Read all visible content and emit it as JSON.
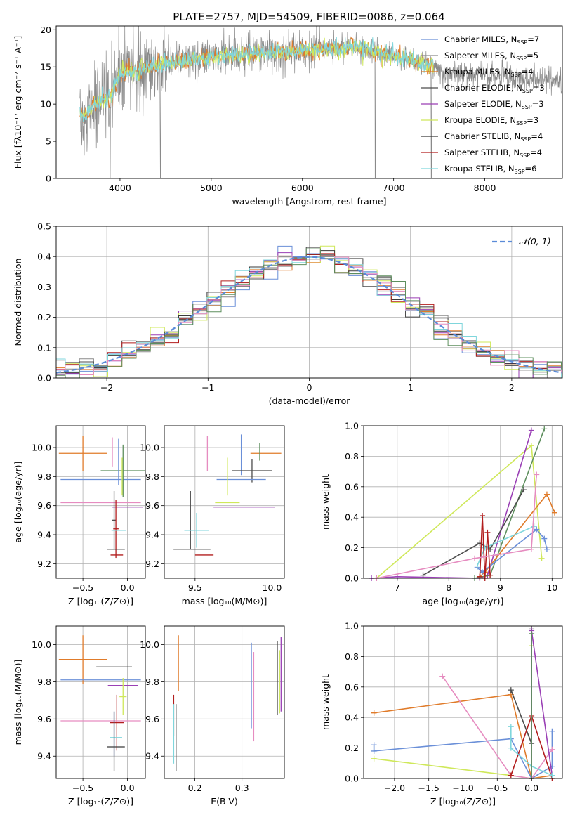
{
  "figure": {
    "title": "PLATE=2757, MJD=54509, FIBERID=0086, z=0.064"
  },
  "palette": [
    "#6a8fd8",
    "#8a8a8a",
    "#e07b2a",
    "#4c4c4c",
    "#9a3fb5",
    "#cfe85a",
    "#3a3a3a",
    "#b21e1e",
    "#7fd6dc",
    "#e68cc0",
    "#5e8f5e"
  ],
  "chart_data": [
    {
      "id": "spectrum",
      "type": "line",
      "xlabel": "wavelength [Angstrom, rest frame]",
      "ylabel": "Flux [fλ10⁻¹⁷ erg cm⁻² s⁻¹ A⁻¹]",
      "xlim": [
        3300,
        8850
      ],
      "ylim": [
        0,
        20.5
      ],
      "xticks": [
        4000,
        5000,
        6000,
        7000,
        8000
      ],
      "yticks": [
        0,
        5,
        10,
        15,
        20
      ],
      "spectrum_x_range": [
        3560,
        8840
      ],
      "grid": false,
      "legend_position": "top-right",
      "legend": [
        {
          "label": "Chabrier MILES, N",
          "sub": "SSP",
          "suffix": "=7",
          "color": "#6a8fd8"
        },
        {
          "label": "Salpeter MILES, N",
          "sub": "SSP",
          "suffix": "=5",
          "color": "#8a8a8a"
        },
        {
          "label": "Kroupa MILES, N",
          "sub": "SSP",
          "suffix": "=4",
          "color": "#e07b2a"
        },
        {
          "label": "Chabrier ELODIE, N",
          "sub": "SSP",
          "suffix": "=3",
          "color": "#4c4c4c"
        },
        {
          "label": "Salpeter ELODIE, N",
          "sub": "SSP",
          "suffix": "=3",
          "color": "#9a3fb5"
        },
        {
          "label": "Kroupa ELODIE, N",
          "sub": "SSP",
          "suffix": "=3",
          "color": "#cfe85a"
        },
        {
          "label": "Chabrier STELIB, N",
          "sub": "SSP",
          "suffix": "=4",
          "color": "#3a3a3a"
        },
        {
          "label": "Salpeter STELIB, N",
          "sub": "SSP",
          "suffix": "=4",
          "color": "#b21e1e"
        },
        {
          "label": "Kroupa STELIB, N",
          "sub": "SSP",
          "suffix": "=6",
          "color": "#7fd6dc"
        }
      ]
    },
    {
      "id": "residuals",
      "type": "histogram",
      "xlabel": "(data-model)/error",
      "ylabel": "Normed distribution",
      "xlim": [
        -2.5,
        2.5
      ],
      "ylim": [
        0,
        0.5
      ],
      "xticks": [
        -2,
        -1,
        0,
        1,
        2
      ],
      "yticks": [
        0.0,
        0.1,
        0.2,
        0.3,
        0.4,
        0.5
      ],
      "grid": true,
      "legend_position": "top-right",
      "legend": [
        {
          "label": "𝒩(0, 1)",
          "color": "#5a8bd8"
        }
      ]
    },
    {
      "id": "age-vs-Z",
      "type": "errorbar",
      "xlabel": "Z [log₁₀(Z/Z⊙)]",
      "ylabel": "age  [log₁₀(age/yr)]",
      "xlim": [
        -0.8,
        0.2
      ],
      "ylim": [
        9.1,
        10.15
      ],
      "xticks": [
        -0.5,
        0.0
      ],
      "yticks": [
        9.2,
        9.4,
        9.6,
        9.8,
        10.0
      ],
      "grid": true,
      "points": [
        {
          "x": -0.5,
          "y": 9.96,
          "xerr": 0.27,
          "yerr": 0.12,
          "color": "#e07b2a"
        },
        {
          "x": -0.3,
          "y": 9.78,
          "xerr": 0.45,
          "yerr": 0.0,
          "color": "#6a8fd8"
        },
        {
          "x": -0.05,
          "y": 9.84,
          "xerr": 0.25,
          "yerr": 0.18,
          "color": "#5e8f5e"
        },
        {
          "x": -0.17,
          "y": 9.97,
          "xerr": 0.0,
          "yerr": 0.1,
          "color": "#e68cc0"
        },
        {
          "x": -0.1,
          "y": 9.9,
          "xerr": 0.0,
          "yerr": 0.16,
          "color": "#6a8fd8"
        },
        {
          "x": -0.06,
          "y": 9.8,
          "xerr": 0.0,
          "yerr": 0.13,
          "color": "#cfe85a"
        },
        {
          "x": -0.3,
          "y": 9.62,
          "xerr": 0.45,
          "yerr": 0.0,
          "color": "#e68cc0"
        },
        {
          "x": 0.0,
          "y": 9.59,
          "xerr": 0.17,
          "yerr": 0.0,
          "color": "#9a3fb5"
        },
        {
          "x": -0.15,
          "y": 9.5,
          "xerr": 0.02,
          "yerr": 0.2,
          "color": "#4c4c4c"
        },
        {
          "x": -0.13,
          "y": 9.44,
          "xerr": 0.03,
          "yerr": 0.2,
          "color": "#b21e1e"
        },
        {
          "x": -0.1,
          "y": 9.43,
          "xerr": 0.08,
          "yerr": 0.0,
          "color": "#7fd6dc"
        },
        {
          "x": -0.13,
          "y": 9.3,
          "xerr": 0.1,
          "yerr": 0.0,
          "color": "#3a3a3a"
        },
        {
          "x": -0.12,
          "y": 9.26,
          "xerr": 0.07,
          "yerr": 0.0,
          "color": "#b21e1e"
        }
      ]
    },
    {
      "id": "age-vs-mass",
      "type": "errorbar",
      "xlabel": "mass [log₁₀(M/M⊙)]",
      "ylabel": "",
      "xlim": [
        9.3,
        10.08
      ],
      "ylim": [
        9.1,
        10.15
      ],
      "xticks": [
        9.5,
        10.0
      ],
      "yticks": [
        9.2,
        9.4,
        9.6,
        9.8,
        10.0
      ],
      "grid": true,
      "points": [
        {
          "x": 9.96,
          "y": 9.96,
          "xerr": 0.1,
          "yerr": 0.0,
          "color": "#e07b2a"
        },
        {
          "x": 9.92,
          "y": 9.97,
          "xerr": 0.0,
          "yerr": 0.06,
          "color": "#5e8f5e"
        },
        {
          "x": 9.58,
          "y": 9.96,
          "xerr": 0.0,
          "yerr": 0.12,
          "color": "#e68cc0"
        },
        {
          "x": 9.8,
          "y": 9.95,
          "xerr": 0.0,
          "yerr": 0.14,
          "color": "#6a8fd8"
        },
        {
          "x": 9.87,
          "y": 9.84,
          "xerr": 0.13,
          "yerr": 0.08,
          "color": "#4c4c4c"
        },
        {
          "x": 9.8,
          "y": 9.78,
          "xerr": 0.16,
          "yerr": 0.0,
          "color": "#6a8fd8"
        },
        {
          "x": 9.71,
          "y": 9.8,
          "xerr": 0.0,
          "yerr": 0.13,
          "color": "#cfe85a"
        },
        {
          "x": 9.71,
          "y": 9.62,
          "xerr": 0.08,
          "yerr": 0.0,
          "color": "#cfe85a"
        },
        {
          "x": 9.82,
          "y": 9.59,
          "xerr": 0.2,
          "yerr": 0.0,
          "color": "#9a3fb5"
        },
        {
          "x": 9.47,
          "y": 9.5,
          "xerr": 0.0,
          "yerr": 0.2,
          "color": "#4c4c4c"
        },
        {
          "x": 9.51,
          "y": 9.43,
          "xerr": 0.08,
          "yerr": 0.12,
          "color": "#7fd6dc"
        },
        {
          "x": 9.48,
          "y": 9.3,
          "xerr": 0.12,
          "yerr": 0.0,
          "color": "#3a3a3a"
        },
        {
          "x": 9.56,
          "y": 9.26,
          "xerr": 0.06,
          "yerr": 0.0,
          "color": "#b21e1e"
        }
      ]
    },
    {
      "id": "mass-vs-Z",
      "type": "errorbar",
      "xlabel": "Z [log₁₀(Z/Z⊙)]",
      "ylabel": "mass [log₁₀(M/M⊙)]",
      "xlim": [
        -0.8,
        0.2
      ],
      "ylim": [
        9.28,
        10.1
      ],
      "xticks": [
        -0.5,
        0.0
      ],
      "yticks": [
        9.4,
        9.6,
        9.8,
        10.0
      ],
      "grid": true,
      "points": [
        {
          "x": -0.5,
          "y": 9.92,
          "xerr": 0.27,
          "yerr": 0.13,
          "color": "#e07b2a"
        },
        {
          "x": -0.15,
          "y": 9.88,
          "xerr": 0.2,
          "yerr": 0.0,
          "color": "#4c4c4c"
        },
        {
          "x": -0.3,
          "y": 9.81,
          "xerr": 0.45,
          "yerr": 0.0,
          "color": "#6a8fd8"
        },
        {
          "x": -0.05,
          "y": 9.78,
          "xerr": 0.17,
          "yerr": 0.0,
          "color": "#9a3fb5"
        },
        {
          "x": -0.05,
          "y": 9.72,
          "xerr": 0.04,
          "yerr": 0.1,
          "color": "#cfe85a"
        },
        {
          "x": -0.12,
          "y": 9.58,
          "xerr": 0.08,
          "yerr": 0.15,
          "color": "#b21e1e"
        },
        {
          "x": -0.3,
          "y": 9.59,
          "xerr": 0.45,
          "yerr": 0.0,
          "color": "#e68cc0"
        },
        {
          "x": -0.15,
          "y": 9.52,
          "xerr": 0.0,
          "yerr": 0.12,
          "color": "#6a8fd8"
        },
        {
          "x": -0.13,
          "y": 9.5,
          "xerr": 0.07,
          "yerr": 0.0,
          "color": "#7fd6dc"
        },
        {
          "x": -0.13,
          "y": 9.45,
          "xerr": 0.1,
          "yerr": 0.0,
          "color": "#3a3a3a"
        },
        {
          "x": -0.15,
          "y": 9.48,
          "xerr": 0.0,
          "yerr": 0.16,
          "color": "#4c4c4c"
        }
      ]
    },
    {
      "id": "mass-vs-EBV",
      "type": "errorbar",
      "xlabel": "E(B-V)",
      "ylabel": "",
      "xlim": [
        0.135,
        0.39
      ],
      "ylim": [
        9.28,
        10.1
      ],
      "xticks": [
        0.2,
        0.3
      ],
      "yticks": [
        9.4,
        9.6,
        9.8,
        10.0
      ],
      "grid": true,
      "points": [
        {
          "x": 0.165,
          "y": 9.9,
          "xerr": 0.0,
          "yerr": 0.15,
          "color": "#e07b2a"
        },
        {
          "x": 0.155,
          "y": 9.62,
          "xerr": 0.0,
          "yerr": 0.11,
          "color": "#b21e1e"
        },
        {
          "x": 0.16,
          "y": 9.5,
          "xerr": 0.0,
          "yerr": 0.18,
          "color": "#4c4c4c"
        },
        {
          "x": 0.155,
          "y": 9.52,
          "xerr": 0.0,
          "yerr": 0.16,
          "color": "#7fd6dc"
        },
        {
          "x": 0.32,
          "y": 9.78,
          "xerr": 0.0,
          "yerr": 0.23,
          "color": "#6a8fd8"
        },
        {
          "x": 0.325,
          "y": 9.72,
          "xerr": 0.0,
          "yerr": 0.24,
          "color": "#e68cc0"
        },
        {
          "x": 0.375,
          "y": 9.82,
          "xerr": 0.0,
          "yerr": 0.2,
          "color": "#3a3a3a"
        },
        {
          "x": 0.38,
          "y": 9.8,
          "xerr": 0.0,
          "yerr": 0.17,
          "color": "#cfe85a"
        },
        {
          "x": 0.383,
          "y": 9.84,
          "xerr": 0.0,
          "yerr": 0.2,
          "color": "#9a3fb5"
        }
      ]
    },
    {
      "id": "weight-vs-age",
      "type": "line",
      "xlabel": "age  [log₁₀(age/yr)]",
      "ylabel": "mass weight",
      "xlim": [
        6.35,
        10.2
      ],
      "ylim": [
        0,
        1.0
      ],
      "xticks": [
        7,
        8,
        9,
        10
      ],
      "yticks": [
        0.0,
        0.2,
        0.4,
        0.6,
        0.8,
        1.0
      ],
      "grid": true,
      "series": [
        {
          "color": "#cfe85a",
          "x": [
            6.6,
            9.6,
            9.8
          ],
          "y": [
            0.0,
            0.87,
            0.13
          ]
        },
        {
          "color": "#9a3fb5",
          "x": [
            6.5,
            7.0,
            8.6,
            8.75,
            9.6
          ],
          "y": [
            0.0,
            0.01,
            0.0,
            0.02,
            0.97
          ]
        },
        {
          "color": "#5e8f5e",
          "x": [
            8.5,
            8.8,
            9.85
          ],
          "y": [
            0.0,
            0.02,
            0.98
          ]
        },
        {
          "color": "#4c4c4c",
          "x": [
            7.5,
            8.6,
            8.8,
            9.45
          ],
          "y": [
            0.02,
            0.23,
            0.19,
            0.58
          ]
        },
        {
          "color": "#e07b2a",
          "x": [
            8.6,
            8.7,
            9.9,
            10.05
          ],
          "y": [
            0.01,
            0.04,
            0.55,
            0.43
          ]
        },
        {
          "color": "#6a8fd8",
          "x": [
            8.55,
            8.65,
            9.7,
            9.85,
            9.9
          ],
          "y": [
            0.07,
            0.04,
            0.32,
            0.26,
            0.19
          ]
        },
        {
          "color": "#7fd6dc",
          "x": [
            8.55,
            8.7,
            9.65
          ],
          "y": [
            0.08,
            0.2,
            0.34
          ]
        },
        {
          "color": "#b21e1e",
          "x": [
            8.6,
            8.65,
            8.7,
            8.75,
            8.8
          ],
          "y": [
            0.01,
            0.41,
            0.0,
            0.3,
            0.02
          ]
        },
        {
          "color": "#e68cc0",
          "x": [
            6.6,
            8.5,
            9.6,
            9.7
          ],
          "y": [
            0.0,
            0.13,
            0.19,
            0.68
          ]
        }
      ]
    },
    {
      "id": "weight-vs-Z",
      "type": "line",
      "xlabel": "Z [log₁₀(Z/Z⊙)]",
      "ylabel": "mass weight",
      "xlim": [
        -2.45,
        0.45
      ],
      "ylim": [
        0,
        1.0
      ],
      "xticks": [
        -2.0,
        -1.5,
        -1.0,
        -0.5,
        0.0
      ],
      "yticks": [
        0.0,
        0.2,
        0.4,
        0.6,
        0.8,
        1.0
      ],
      "grid": true,
      "series": [
        {
          "color": "#e07b2a",
          "x": [
            -2.3,
            -0.3,
            0.0,
            0.3
          ],
          "y": [
            0.43,
            0.55,
            0.0,
            0.02
          ]
        },
        {
          "color": "#6a8fd8",
          "x": [
            -2.3,
            -2.3,
            -0.3,
            0.0,
            0.3,
            0.3
          ],
          "y": [
            0.22,
            0.18,
            0.26,
            0.0,
            0.08,
            0.31
          ]
        },
        {
          "color": "#cfe85a",
          "x": [
            -2.3,
            -0.3,
            0.0,
            0.0
          ],
          "y": [
            0.13,
            0.02,
            0.0,
            0.87
          ]
        },
        {
          "color": "#e68cc0",
          "x": [
            -1.3,
            -0.3,
            0.0,
            0.3
          ],
          "y": [
            0.67,
            0.02,
            0.0,
            0.19
          ]
        },
        {
          "color": "#4c4c4c",
          "x": [
            -0.3,
            0.0,
            0.0
          ],
          "y": [
            0.58,
            0.23,
            0.98
          ]
        },
        {
          "color": "#9a3fb5",
          "x": [
            0.0,
            0.0,
            0.3
          ],
          "y": [
            0.0,
            0.97,
            0.02
          ]
        },
        {
          "color": "#b21e1e",
          "x": [
            -0.3,
            0.0,
            0.3
          ],
          "y": [
            0.02,
            0.41,
            0.0
          ]
        },
        {
          "color": "#7fd6dc",
          "x": [
            -0.3,
            -0.3,
            0.0,
            0.3
          ],
          "y": [
            0.34,
            0.2,
            0.08,
            0.02
          ]
        },
        {
          "color": "#5e8f5e",
          "x": [
            0.0,
            0.0
          ],
          "y": [
            0.0,
            0.95
          ]
        }
      ]
    }
  ]
}
